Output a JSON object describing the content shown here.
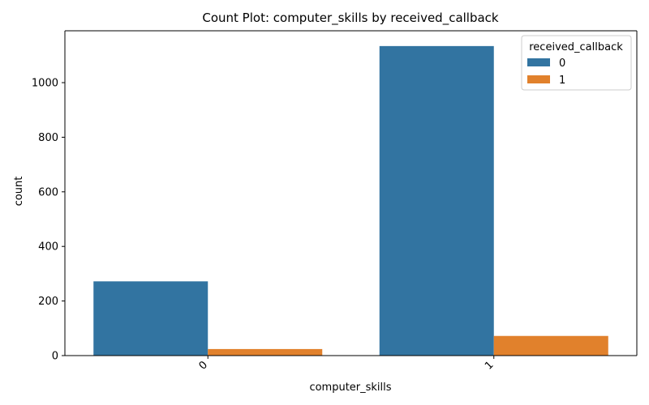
{
  "chart_data": {
    "type": "bar",
    "title": "Count Plot: computer_skills by received_callback",
    "xlabel": "computer_skills",
    "ylabel": "count",
    "categories": [
      "0",
      "1"
    ],
    "series": [
      {
        "name": "0",
        "color": "#3274a1",
        "values": [
          272,
          1134
        ]
      },
      {
        "name": "1",
        "color": "#e1812c",
        "values": [
          24,
          72
        ]
      }
    ],
    "ylim": [
      0,
      1190
    ],
    "yticks": [
      0,
      200,
      400,
      600,
      800,
      1000
    ],
    "legend": {
      "title": "received_callback",
      "placement": "top-right"
    },
    "grid": false
  }
}
